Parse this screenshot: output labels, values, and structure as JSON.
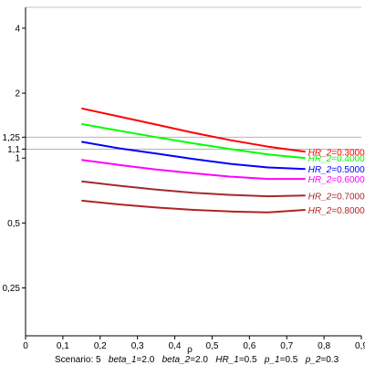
{
  "chart_data": {
    "type": "line",
    "xlabel": "ρ",
    "ylabel": "",
    "xlim": [
      0,
      0.9
    ],
    "ylim": [
      0.15,
      5.0
    ],
    "y_scale": "log",
    "x_ticks": [
      {
        "v": 0,
        "label": "0"
      },
      {
        "v": 0.1,
        "label": "0,1"
      },
      {
        "v": 0.2,
        "label": "0,2"
      },
      {
        "v": 0.3,
        "label": "0,3"
      },
      {
        "v": 0.4,
        "label": "0,4"
      },
      {
        "v": 0.5,
        "label": "0,5"
      },
      {
        "v": 0.6,
        "label": "0,6"
      },
      {
        "v": 0.7,
        "label": "0,7"
      },
      {
        "v": 0.8,
        "label": "0,8"
      },
      {
        "v": 0.9,
        "label": "0,9"
      }
    ],
    "y_ticks": [
      {
        "v": 0.25,
        "label": "0,25"
      },
      {
        "v": 0.5,
        "label": "0,5"
      },
      {
        "v": 1,
        "label": "1"
      },
      {
        "v": 1.1,
        "label": "1,1"
      },
      {
        "v": 1.25,
        "label": "1,25"
      },
      {
        "v": 2,
        "label": "2"
      },
      {
        "v": 4,
        "label": "4"
      }
    ],
    "reference_lines": [
      1.25,
      1.1
    ],
    "series": [
      {
        "label": "HR_2",
        "value_text": "=0.3000",
        "color": "#ff0000",
        "x": [
          0.15,
          0.25,
          0.35,
          0.45,
          0.55,
          0.65,
          0.75
        ],
        "y": [
          1.7,
          1.56,
          1.43,
          1.31,
          1.21,
          1.13,
          1.07
        ]
      },
      {
        "label": "HR_2",
        "value_text": "=0.4000",
        "color": "#00ff00",
        "x": [
          0.15,
          0.25,
          0.35,
          0.45,
          0.55,
          0.65,
          0.75
        ],
        "y": [
          1.44,
          1.34,
          1.25,
          1.17,
          1.1,
          1.04,
          1.0
        ]
      },
      {
        "label": "HR_2",
        "value_text": "=0.5000",
        "color": "#0000ff",
        "x": [
          0.15,
          0.25,
          0.35,
          0.45,
          0.55,
          0.65,
          0.75
        ],
        "y": [
          1.19,
          1.11,
          1.05,
          0.99,
          0.94,
          0.905,
          0.89
        ]
      },
      {
        "label": "HR_2",
        "value_text": "=0.6000",
        "color": "#ff00ff",
        "x": [
          0.15,
          0.25,
          0.35,
          0.45,
          0.55,
          0.65,
          0.75
        ],
        "y": [
          0.98,
          0.93,
          0.885,
          0.85,
          0.82,
          0.8,
          0.8
        ]
      },
      {
        "label": "HR_2",
        "value_text": "=0.7000",
        "color": "#a52a2a",
        "x": [
          0.15,
          0.25,
          0.35,
          0.45,
          0.55,
          0.65,
          0.75
        ],
        "y": [
          0.78,
          0.745,
          0.715,
          0.69,
          0.675,
          0.665,
          0.67
        ]
      },
      {
        "label": "HR_2",
        "value_text": "=0.8000",
        "color": "#b22222",
        "x": [
          0.15,
          0.25,
          0.35,
          0.45,
          0.55,
          0.65,
          0.75
        ],
        "y": [
          0.635,
          0.61,
          0.59,
          0.575,
          0.565,
          0.56,
          0.575
        ]
      }
    ],
    "caption": [
      {
        "text": "Scenario: 5",
        "italic": false
      },
      {
        "text": "beta_1",
        "italic": true
      },
      {
        "text": "=2.0",
        "italic": false
      },
      {
        "text": "beta_2",
        "italic": true
      },
      {
        "text": "=2.0",
        "italic": false
      },
      {
        "text": "HR_1",
        "italic": true
      },
      {
        "text": "=0.5",
        "italic": false
      },
      {
        "text": "p_1",
        "italic": true
      },
      {
        "text": "=0.5",
        "italic": false
      },
      {
        "text": "p_2",
        "italic": true
      },
      {
        "text": "=0.3",
        "italic": false
      }
    ]
  }
}
